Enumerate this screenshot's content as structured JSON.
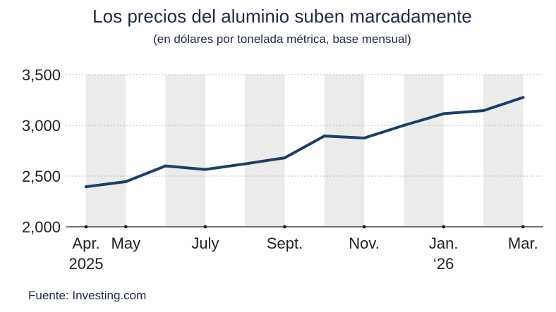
{
  "chart_data": {
    "type": "line",
    "title": "Los precios del aluminio suben marcadamente",
    "subtitle": "(en dólares por tonelada métrica, base mensual)",
    "source": "Fuente: Investing.com",
    "x": [
      "2025-04",
      "2025-05",
      "2025-06",
      "2025-07",
      "2025-08",
      "2025-09",
      "2025-10",
      "2025-11",
      "2025-12",
      "2026-01",
      "2026-02",
      "2026-03"
    ],
    "series": [
      {
        "values": [
          2395,
          2445,
          2600,
          2565,
          2620,
          2680,
          2895,
          2875,
          3000,
          3115,
          3145,
          3275
        ]
      }
    ],
    "ylim": [
      2000,
      3500
    ],
    "y_ticks": [
      2000,
      2500,
      3000,
      3500
    ],
    "y_tick_labels": [
      "2,000",
      "2,500",
      "3,000",
      "3,500"
    ],
    "x_tick_labels": [
      {
        "index": 0,
        "lines": [
          "Apr.",
          "2025"
        ]
      },
      {
        "index": 1,
        "lines": [
          "May"
        ]
      },
      {
        "index": 3,
        "lines": [
          "July"
        ]
      },
      {
        "index": 5,
        "lines": [
          "Sept."
        ]
      },
      {
        "index": 7,
        "lines": [
          "Nov."
        ]
      },
      {
        "index": 9,
        "lines": [
          "Jan.",
          "‘26"
        ]
      },
      {
        "index": 11,
        "lines": [
          "Mar."
        ]
      }
    ],
    "grid": true,
    "shaded_columns": [
      0,
      2,
      4,
      6,
      8,
      10
    ],
    "colors": {
      "line": "#1b3f6b",
      "band": "#ebebeb",
      "grid": "#b5b5b5",
      "text": "#1f2a44"
    }
  }
}
